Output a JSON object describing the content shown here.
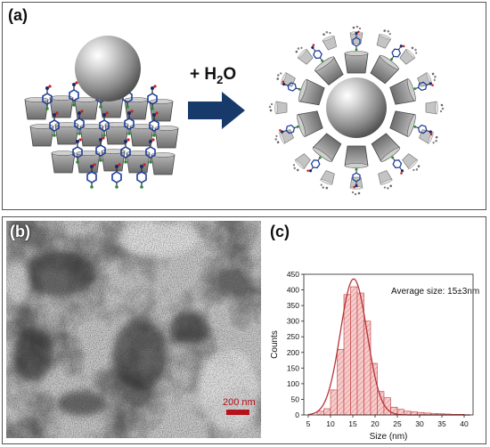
{
  "panel_a": {
    "label": "(a)",
    "reaction_label_prefix": "+ H",
    "reaction_label_sub": "2",
    "reaction_label_suffix": "O",
    "colors": {
      "arrow": "#173a6b",
      "cup": "#8d8d8d",
      "sphere": "#9a9a9a"
    },
    "icons": [
      "nanoparticle-sphere",
      "cyclodextrin-cup",
      "ligand-molecule",
      "reaction-arrow"
    ]
  },
  "panel_b": {
    "label": "(b)",
    "scale_bar_label": "200 nm",
    "colors": {
      "scale_bar": "#b5121b"
    }
  },
  "panel_c": {
    "label": "(c)",
    "annotation": "Average size: 15±3nm",
    "chart_data": {
      "type": "bar",
      "subtype": "histogram",
      "xlabel": "Size (nm)",
      "ylabel": "Counts",
      "xlim": [
        4,
        42
      ],
      "ylim": [
        0,
        450
      ],
      "xticks": [
        5,
        10,
        15,
        20,
        25,
        30,
        35,
        40
      ],
      "yticks": [
        0,
        50,
        100,
        150,
        200,
        250,
        300,
        350,
        400,
        450
      ],
      "bin_width": 1.5,
      "bin_starts": [
        7,
        8.5,
        10,
        11.5,
        13,
        14.5,
        16,
        17.5,
        19,
        20.5,
        22,
        23.5,
        25,
        26.5,
        28,
        29.5,
        31,
        32.5,
        34,
        35.5,
        37,
        38.5
      ],
      "values": [
        12,
        20,
        80,
        210,
        385,
        410,
        390,
        300,
        165,
        75,
        55,
        25,
        18,
        12,
        10,
        8,
        6,
        5,
        4,
        3,
        2,
        2
      ],
      "fit_curve": {
        "type": "gaussian",
        "center": 15.2,
        "amplitude": 435,
        "sigma": 3.0
      },
      "colors": {
        "bar_fill": "#f6cccc",
        "bar_stroke": "#c0393b",
        "hatch": "#d9787a",
        "fit": "#b83236"
      },
      "grid": false
    }
  }
}
